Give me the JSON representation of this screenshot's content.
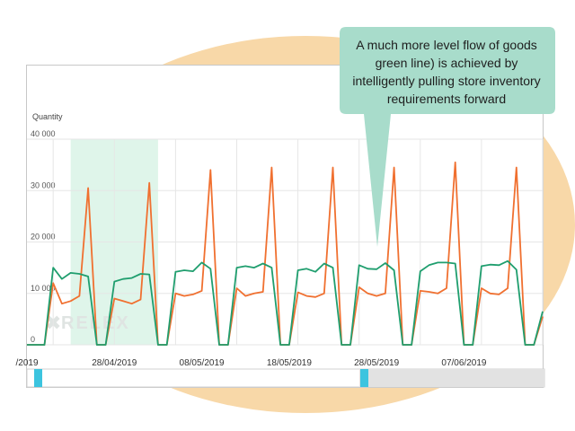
{
  "callout": {
    "lines": [
      "A much more level flow of goods",
      "green line) is achieved by",
      "intelligently pulling store inventory",
      "requirements forward"
    ]
  },
  "watermark": "RELEX",
  "colors": {
    "orange": "#f07030",
    "green": "#1f9e6e",
    "highlight": "#dff5ea",
    "callout_bg": "#a8dccb",
    "blob": "#f8d8a8",
    "scroll_thumb": "#3cc4df"
  },
  "chart_data": {
    "type": "line",
    "ylabel": "Quantity",
    "ylim": [
      0,
      40000
    ],
    "yticks": [
      0,
      10000,
      20000,
      30000,
      40000
    ],
    "ytick_labels": [
      "0",
      "10 000",
      "20 000",
      "30 000",
      "40 000"
    ],
    "xlim": [
      "2019-04-18",
      "2019-06-16"
    ],
    "xtick_labels": [
      "/2019",
      "28/04/2019",
      "08/05/2019",
      "18/05/2019",
      "28/05/2019",
      "07/06/2019"
    ],
    "xtick_dates": [
      "2019-04-18",
      "2019-04-28",
      "2019-05-08",
      "2019-05-18",
      "2019-05-28",
      "2019-06-07"
    ],
    "highlight_range": [
      "2019-04-23",
      "2019-05-03"
    ],
    "grid": true,
    "series": [
      {
        "color": "orange",
        "points": [
          [
            "2019-04-18",
            0
          ],
          [
            "2019-04-19",
            0
          ],
          [
            "2019-04-20",
            0
          ],
          [
            "2019-04-21",
            12000
          ],
          [
            "2019-04-22",
            8000
          ],
          [
            "2019-04-23",
            8500
          ],
          [
            "2019-04-24",
            9500
          ],
          [
            "2019-04-25",
            30500
          ],
          [
            "2019-04-26",
            0
          ],
          [
            "2019-04-27",
            0
          ],
          [
            "2019-04-28",
            9000
          ],
          [
            "2019-04-29",
            8500
          ],
          [
            "2019-04-30",
            8000
          ],
          [
            "2019-05-01",
            8800
          ],
          [
            "2019-05-02",
            31500
          ],
          [
            "2019-05-03",
            0
          ],
          [
            "2019-05-04",
            0
          ],
          [
            "2019-05-05",
            10000
          ],
          [
            "2019-05-06",
            9500
          ],
          [
            "2019-05-07",
            9800
          ],
          [
            "2019-05-08",
            10500
          ],
          [
            "2019-05-09",
            34000
          ],
          [
            "2019-05-10",
            0
          ],
          [
            "2019-05-11",
            0
          ],
          [
            "2019-05-12",
            11000
          ],
          [
            "2019-05-13",
            9500
          ],
          [
            "2019-05-14",
            10000
          ],
          [
            "2019-05-15",
            10300
          ],
          [
            "2019-05-16",
            34500
          ],
          [
            "2019-05-17",
            0
          ],
          [
            "2019-05-18",
            0
          ],
          [
            "2019-05-19",
            10200
          ],
          [
            "2019-05-20",
            9500
          ],
          [
            "2019-05-21",
            9300
          ],
          [
            "2019-05-22",
            10000
          ],
          [
            "2019-05-23",
            34500
          ],
          [
            "2019-05-24",
            0
          ],
          [
            "2019-05-25",
            0
          ],
          [
            "2019-05-26",
            11200
          ],
          [
            "2019-05-27",
            10000
          ],
          [
            "2019-05-28",
            9500
          ],
          [
            "2019-05-29",
            10000
          ],
          [
            "2019-05-30",
            34500
          ],
          [
            "2019-05-31",
            0
          ],
          [
            "2019-06-01",
            0
          ],
          [
            "2019-06-02",
            10500
          ],
          [
            "2019-06-03",
            10300
          ],
          [
            "2019-06-04",
            10000
          ],
          [
            "2019-06-05",
            11000
          ],
          [
            "2019-06-06",
            35500
          ],
          [
            "2019-06-07",
            0
          ],
          [
            "2019-06-08",
            0
          ],
          [
            "2019-06-09",
            11000
          ],
          [
            "2019-06-10",
            10000
          ],
          [
            "2019-06-11",
            9800
          ],
          [
            "2019-06-12",
            11000
          ],
          [
            "2019-06-13",
            34500
          ],
          [
            "2019-06-14",
            0
          ],
          [
            "2019-06-15",
            0
          ],
          [
            "2019-06-16",
            5500
          ]
        ]
      },
      {
        "color": "green",
        "points": [
          [
            "2019-04-18",
            0
          ],
          [
            "2019-04-19",
            0
          ],
          [
            "2019-04-20",
            0
          ],
          [
            "2019-04-21",
            15000
          ],
          [
            "2019-04-22",
            12800
          ],
          [
            "2019-04-23",
            14000
          ],
          [
            "2019-04-24",
            13800
          ],
          [
            "2019-04-25",
            13300
          ],
          [
            "2019-04-26",
            0
          ],
          [
            "2019-04-27",
            0
          ],
          [
            "2019-04-28",
            12300
          ],
          [
            "2019-04-29",
            12800
          ],
          [
            "2019-04-30",
            13000
          ],
          [
            "2019-05-01",
            13800
          ],
          [
            "2019-05-02",
            13700
          ],
          [
            "2019-05-03",
            0
          ],
          [
            "2019-05-04",
            0
          ],
          [
            "2019-05-05",
            14200
          ],
          [
            "2019-05-06",
            14500
          ],
          [
            "2019-05-07",
            14300
          ],
          [
            "2019-05-08",
            16000
          ],
          [
            "2019-05-09",
            14800
          ],
          [
            "2019-05-10",
            0
          ],
          [
            "2019-05-11",
            0
          ],
          [
            "2019-05-12",
            15000
          ],
          [
            "2019-05-13",
            15300
          ],
          [
            "2019-05-14",
            15000
          ],
          [
            "2019-05-15",
            15800
          ],
          [
            "2019-05-16",
            15000
          ],
          [
            "2019-05-17",
            0
          ],
          [
            "2019-05-18",
            0
          ],
          [
            "2019-05-19",
            14500
          ],
          [
            "2019-05-20",
            14800
          ],
          [
            "2019-05-21",
            14200
          ],
          [
            "2019-05-22",
            15800
          ],
          [
            "2019-05-23",
            15000
          ],
          [
            "2019-05-24",
            0
          ],
          [
            "2019-05-25",
            0
          ],
          [
            "2019-05-26",
            15500
          ],
          [
            "2019-05-27",
            14800
          ],
          [
            "2019-05-28",
            14700
          ],
          [
            "2019-05-29",
            15900
          ],
          [
            "2019-05-30",
            14500
          ],
          [
            "2019-05-31",
            0
          ],
          [
            "2019-06-01",
            0
          ],
          [
            "2019-06-02",
            14300
          ],
          [
            "2019-06-03",
            15500
          ],
          [
            "2019-06-04",
            16000
          ],
          [
            "2019-06-05",
            16000
          ],
          [
            "2019-06-06",
            15800
          ],
          [
            "2019-06-07",
            0
          ],
          [
            "2019-06-08",
            0
          ],
          [
            "2019-06-09",
            15300
          ],
          [
            "2019-06-10",
            15600
          ],
          [
            "2019-06-11",
            15500
          ],
          [
            "2019-06-12",
            16300
          ],
          [
            "2019-06-13",
            14600
          ],
          [
            "2019-06-14",
            0
          ],
          [
            "2019-06-15",
            0
          ],
          [
            "2019-06-16",
            6500
          ]
        ]
      }
    ]
  }
}
